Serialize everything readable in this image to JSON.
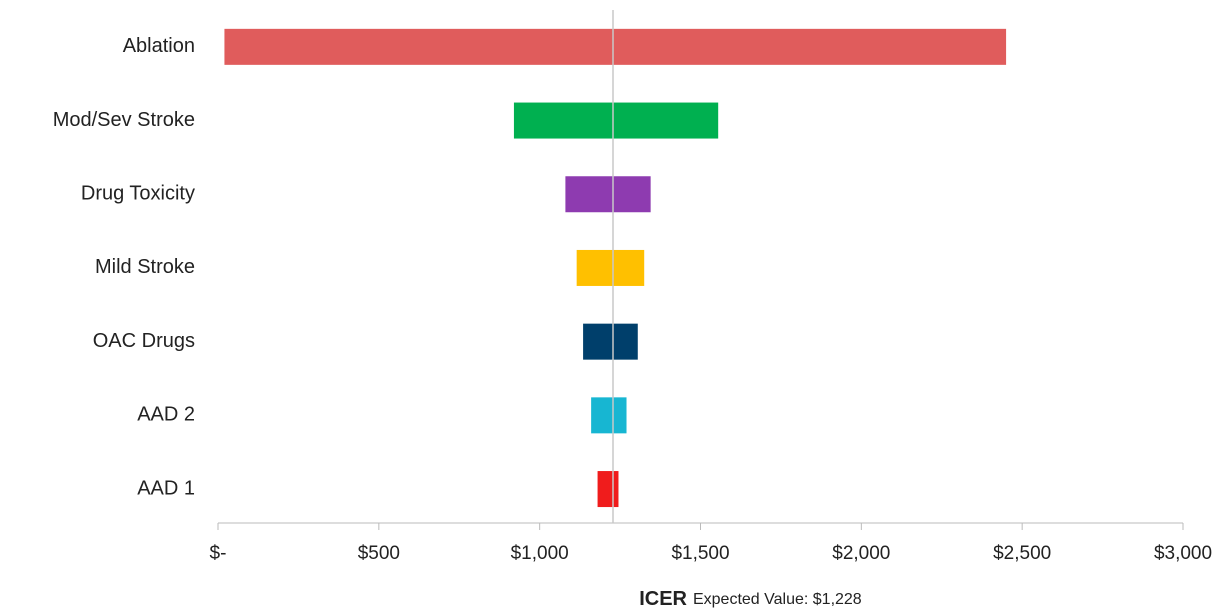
{
  "chart_data": {
    "type": "tornado",
    "categories": [
      "Ablation",
      "Mod/Sev Stroke",
      "Drug Toxicity",
      "Mild Stroke",
      "OAC Drugs",
      "AAD 2",
      "AAD 1"
    ],
    "low": [
      20,
      920,
      1080,
      1115,
      1135,
      1160,
      1180
    ],
    "high": [
      2450,
      1555,
      1345,
      1325,
      1305,
      1270,
      1245
    ],
    "colors": [
      "#e05c5c",
      "#00b050",
      "#8e3bb0",
      "#ffc000",
      "#003f6b",
      "#17b6d2",
      "#f01c1c"
    ],
    "xlim": [
      0,
      3000
    ],
    "xticks": [
      {
        "value": 0,
        "label": "$-"
      },
      {
        "value": 500,
        "label": "$500"
      },
      {
        "value": 1000,
        "label": "$1,000"
      },
      {
        "value": 1500,
        "label": "$1,500"
      },
      {
        "value": 2000,
        "label": "$2,000"
      },
      {
        "value": 2500,
        "label": "$2,500"
      },
      {
        "value": 3000,
        "label": "$3,000"
      }
    ],
    "xlabel": "ICER",
    "reference_line": {
      "value": 1228,
      "label": "Expected Value: $1,228"
    }
  }
}
